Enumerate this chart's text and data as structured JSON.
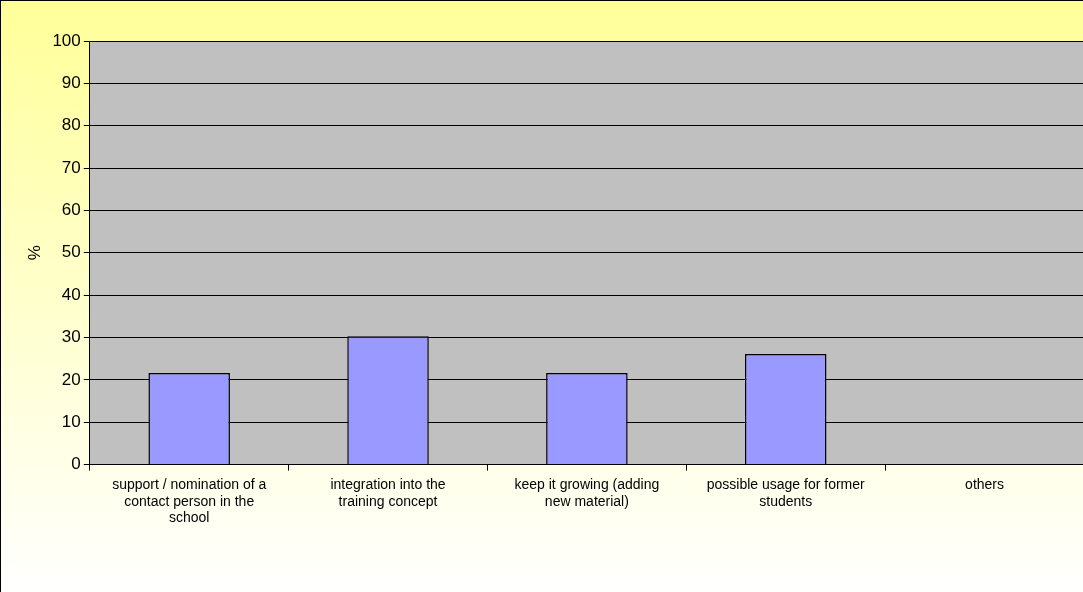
{
  "chart_data": {
    "type": "bar",
    "ylabel": "%",
    "categories": [
      "support / nomination of a contact person in the school",
      "integration into the training concept",
      "keep it growing (adding new material)",
      "possible usage for former students",
      "others"
    ],
    "values": [
      21.6,
      30.3,
      21.6,
      26.1,
      0
    ],
    "color": "#9999ff",
    "ylim": [
      0,
      100
    ],
    "yticks": [
      0,
      10,
      20,
      30,
      40,
      50,
      60,
      70,
      80,
      90,
      100
    ],
    "grid": "y",
    "legend": false
  }
}
